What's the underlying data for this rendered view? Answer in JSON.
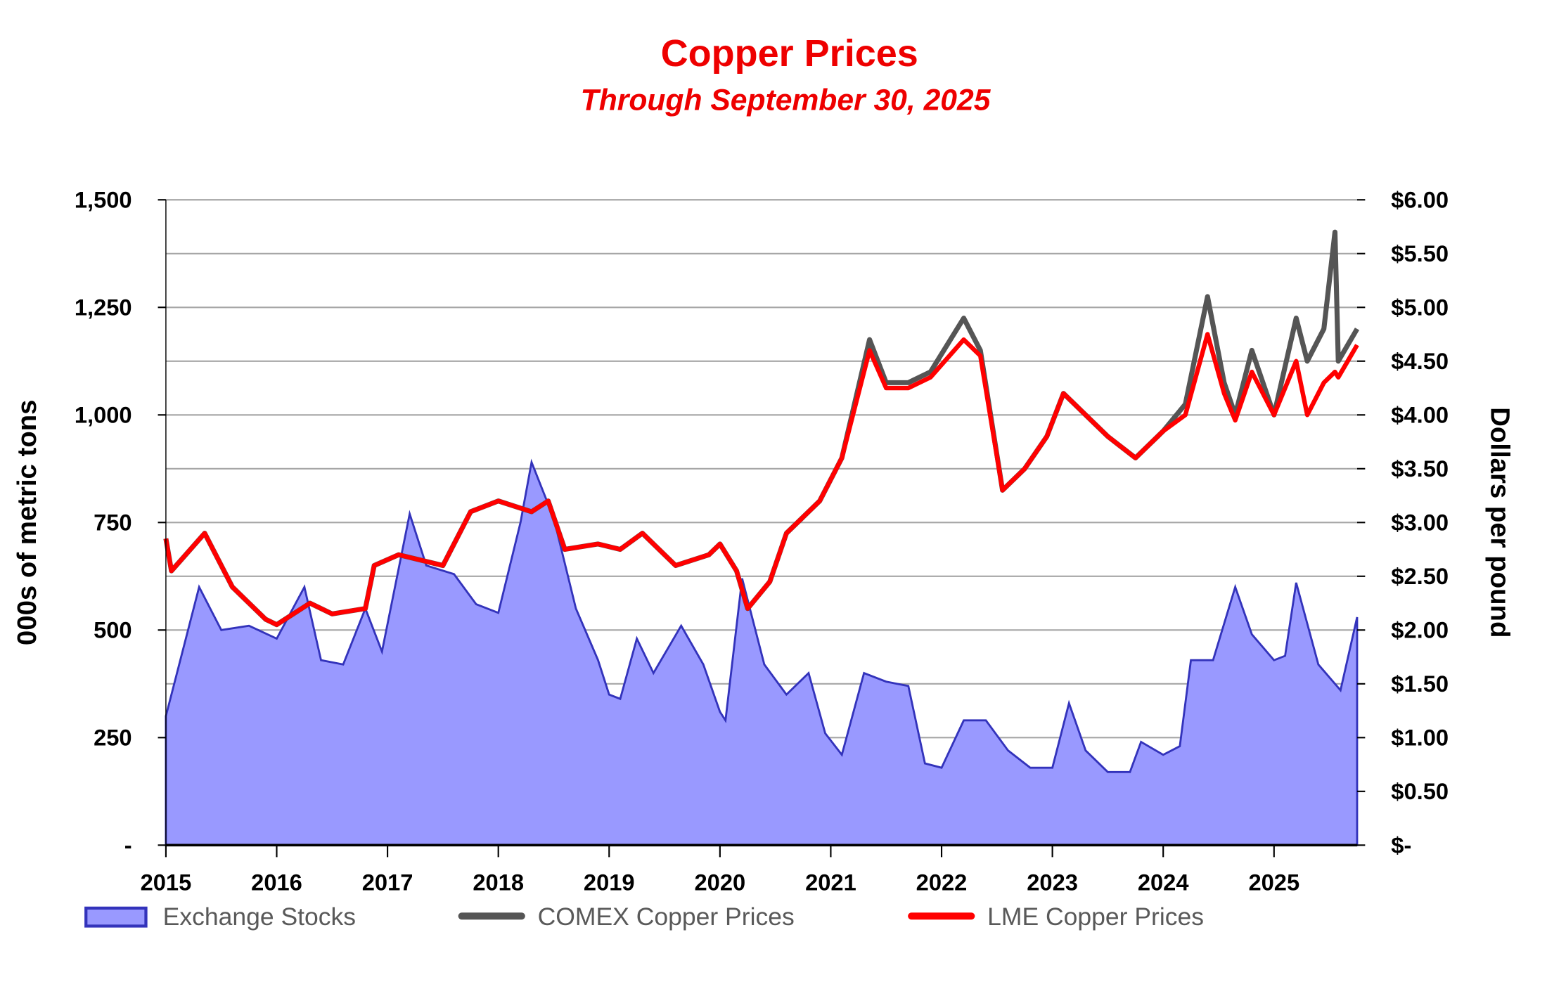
{
  "chart_data": {
    "type": "area+line",
    "title": "Copper Prices",
    "subtitle": "Through September 30, 2025",
    "ylabel_left": "000s of metric tons",
    "ylabel_right": "Dollars per pound",
    "xlim": [
      2015,
      2025.75
    ],
    "ylim_left": [
      0,
      1500
    ],
    "ylim_right": [
      0,
      6
    ],
    "grid": true,
    "legend_position": "bottom",
    "x_ticks": [
      "2015",
      "2016",
      "2017",
      "2018",
      "2019",
      "2020",
      "2021",
      "2022",
      "2023",
      "2024",
      "2025"
    ],
    "y_left_ticks": [
      "-",
      "250",
      "500",
      "750",
      "1,000",
      "1,250",
      "1,500"
    ],
    "y_right_ticks": [
      "$-",
      "$0.50",
      "$1.00",
      "$1.50",
      "$2.00",
      "$2.50",
      "$3.00",
      "$3.50",
      "$4.00",
      "$4.50",
      "$5.00",
      "$5.50",
      "$6.00"
    ],
    "colors": {
      "stocks_fill": "#9999ff",
      "stocks_line": "#3333bb",
      "comex": "#555555",
      "lme": "#ff0000",
      "title": "#ee0000"
    },
    "series": [
      {
        "name": "Exchange Stocks",
        "axis": "left",
        "kind": "area",
        "x": [
          2015.0,
          2015.15,
          2015.3,
          2015.5,
          2015.75,
          2016.0,
          2016.25,
          2016.4,
          2016.6,
          2016.8,
          2016.95,
          2017.2,
          2017.35,
          2017.6,
          2017.8,
          2018.0,
          2018.2,
          2018.3,
          2018.5,
          2018.7,
          2018.9,
          2019.0,
          2019.1,
          2019.25,
          2019.4,
          2019.65,
          2019.85,
          2020.0,
          2020.05,
          2020.2,
          2020.4,
          2020.6,
          2020.8,
          2020.95,
          2021.1,
          2021.3,
          2021.5,
          2021.7,
          2021.85,
          2022.0,
          2022.2,
          2022.4,
          2022.6,
          2022.8,
          2023.0,
          2023.15,
          2023.3,
          2023.5,
          2023.7,
          2023.8,
          2024.0,
          2024.15,
          2024.25,
          2024.45,
          2024.65,
          2024.8,
          2025.0,
          2025.1,
          2025.2,
          2025.4,
          2025.6,
          2025.75
        ],
        "values": [
          300,
          450,
          600,
          500,
          510,
          480,
          600,
          430,
          420,
          550,
          450,
          770,
          650,
          630,
          560,
          540,
          750,
          890,
          760,
          550,
          430,
          350,
          340,
          480,
          400,
          510,
          420,
          310,
          290,
          620,
          420,
          350,
          400,
          260,
          210,
          400,
          380,
          370,
          190,
          180,
          290,
          290,
          220,
          180,
          180,
          330,
          220,
          170,
          170,
          240,
          210,
          230,
          430,
          430,
          600,
          490,
          430,
          440,
          610,
          420,
          360,
          530
        ]
      },
      {
        "name": "COMEX Copper Prices",
        "axis": "right",
        "kind": "line",
        "x": [
          2015.0,
          2015.05,
          2015.35,
          2015.6,
          2015.9,
          2016.0,
          2016.3,
          2016.5,
          2016.8,
          2016.88,
          2017.1,
          2017.5,
          2017.75,
          2018.0,
          2018.3,
          2018.45,
          2018.6,
          2018.9,
          2019.1,
          2019.3,
          2019.6,
          2019.9,
          2020.0,
          2020.15,
          2020.25,
          2020.45,
          2020.6,
          2020.9,
          2021.1,
          2021.35,
          2021.5,
          2021.7,
          2021.9,
          2022.2,
          2022.35,
          2022.55,
          2022.75,
          2022.95,
          2023.1,
          2023.3,
          2023.5,
          2023.75,
          2024.0,
          2024.2,
          2024.4,
          2024.55,
          2024.65,
          2024.8,
          2025.0,
          2025.2,
          2025.3,
          2025.45,
          2025.55,
          2025.58,
          2025.75
        ],
        "values": [
          2.85,
          2.55,
          2.9,
          2.4,
          2.1,
          2.05,
          2.25,
          2.15,
          2.2,
          2.6,
          2.7,
          2.6,
          3.1,
          3.2,
          3.1,
          3.2,
          2.75,
          2.8,
          2.75,
          2.9,
          2.6,
          2.7,
          2.8,
          2.55,
          2.2,
          2.45,
          2.9,
          3.2,
          3.6,
          4.7,
          4.3,
          4.3,
          4.4,
          4.9,
          4.6,
          3.3,
          3.5,
          3.8,
          4.2,
          4.0,
          3.8,
          3.6,
          3.85,
          4.1,
          5.1,
          4.3,
          4.0,
          4.6,
          4.0,
          4.9,
          4.5,
          4.8,
          5.7,
          4.5,
          4.8
        ]
      },
      {
        "name": "LME Copper Prices",
        "axis": "right",
        "kind": "line",
        "x": [
          2015.0,
          2015.05,
          2015.35,
          2015.6,
          2015.9,
          2016.0,
          2016.3,
          2016.5,
          2016.8,
          2016.88,
          2017.1,
          2017.5,
          2017.75,
          2018.0,
          2018.3,
          2018.45,
          2018.6,
          2018.9,
          2019.1,
          2019.3,
          2019.6,
          2019.9,
          2020.0,
          2020.15,
          2020.25,
          2020.45,
          2020.6,
          2020.9,
          2021.1,
          2021.35,
          2021.5,
          2021.7,
          2021.9,
          2022.2,
          2022.35,
          2022.55,
          2022.75,
          2022.95,
          2023.1,
          2023.3,
          2023.5,
          2023.75,
          2024.0,
          2024.2,
          2024.4,
          2024.55,
          2024.65,
          2024.8,
          2025.0,
          2025.2,
          2025.3,
          2025.45,
          2025.55,
          2025.58,
          2025.75
        ],
        "values": [
          2.85,
          2.55,
          2.9,
          2.4,
          2.1,
          2.05,
          2.25,
          2.15,
          2.2,
          2.6,
          2.7,
          2.6,
          3.1,
          3.2,
          3.1,
          3.2,
          2.75,
          2.8,
          2.75,
          2.9,
          2.6,
          2.7,
          2.8,
          2.55,
          2.2,
          2.45,
          2.9,
          3.2,
          3.6,
          4.6,
          4.25,
          4.25,
          4.35,
          4.7,
          4.55,
          3.3,
          3.5,
          3.8,
          4.2,
          4.0,
          3.8,
          3.6,
          3.85,
          4.0,
          4.75,
          4.2,
          3.95,
          4.4,
          4.0,
          4.5,
          4.0,
          4.3,
          4.4,
          4.35,
          4.65
        ]
      }
    ]
  }
}
